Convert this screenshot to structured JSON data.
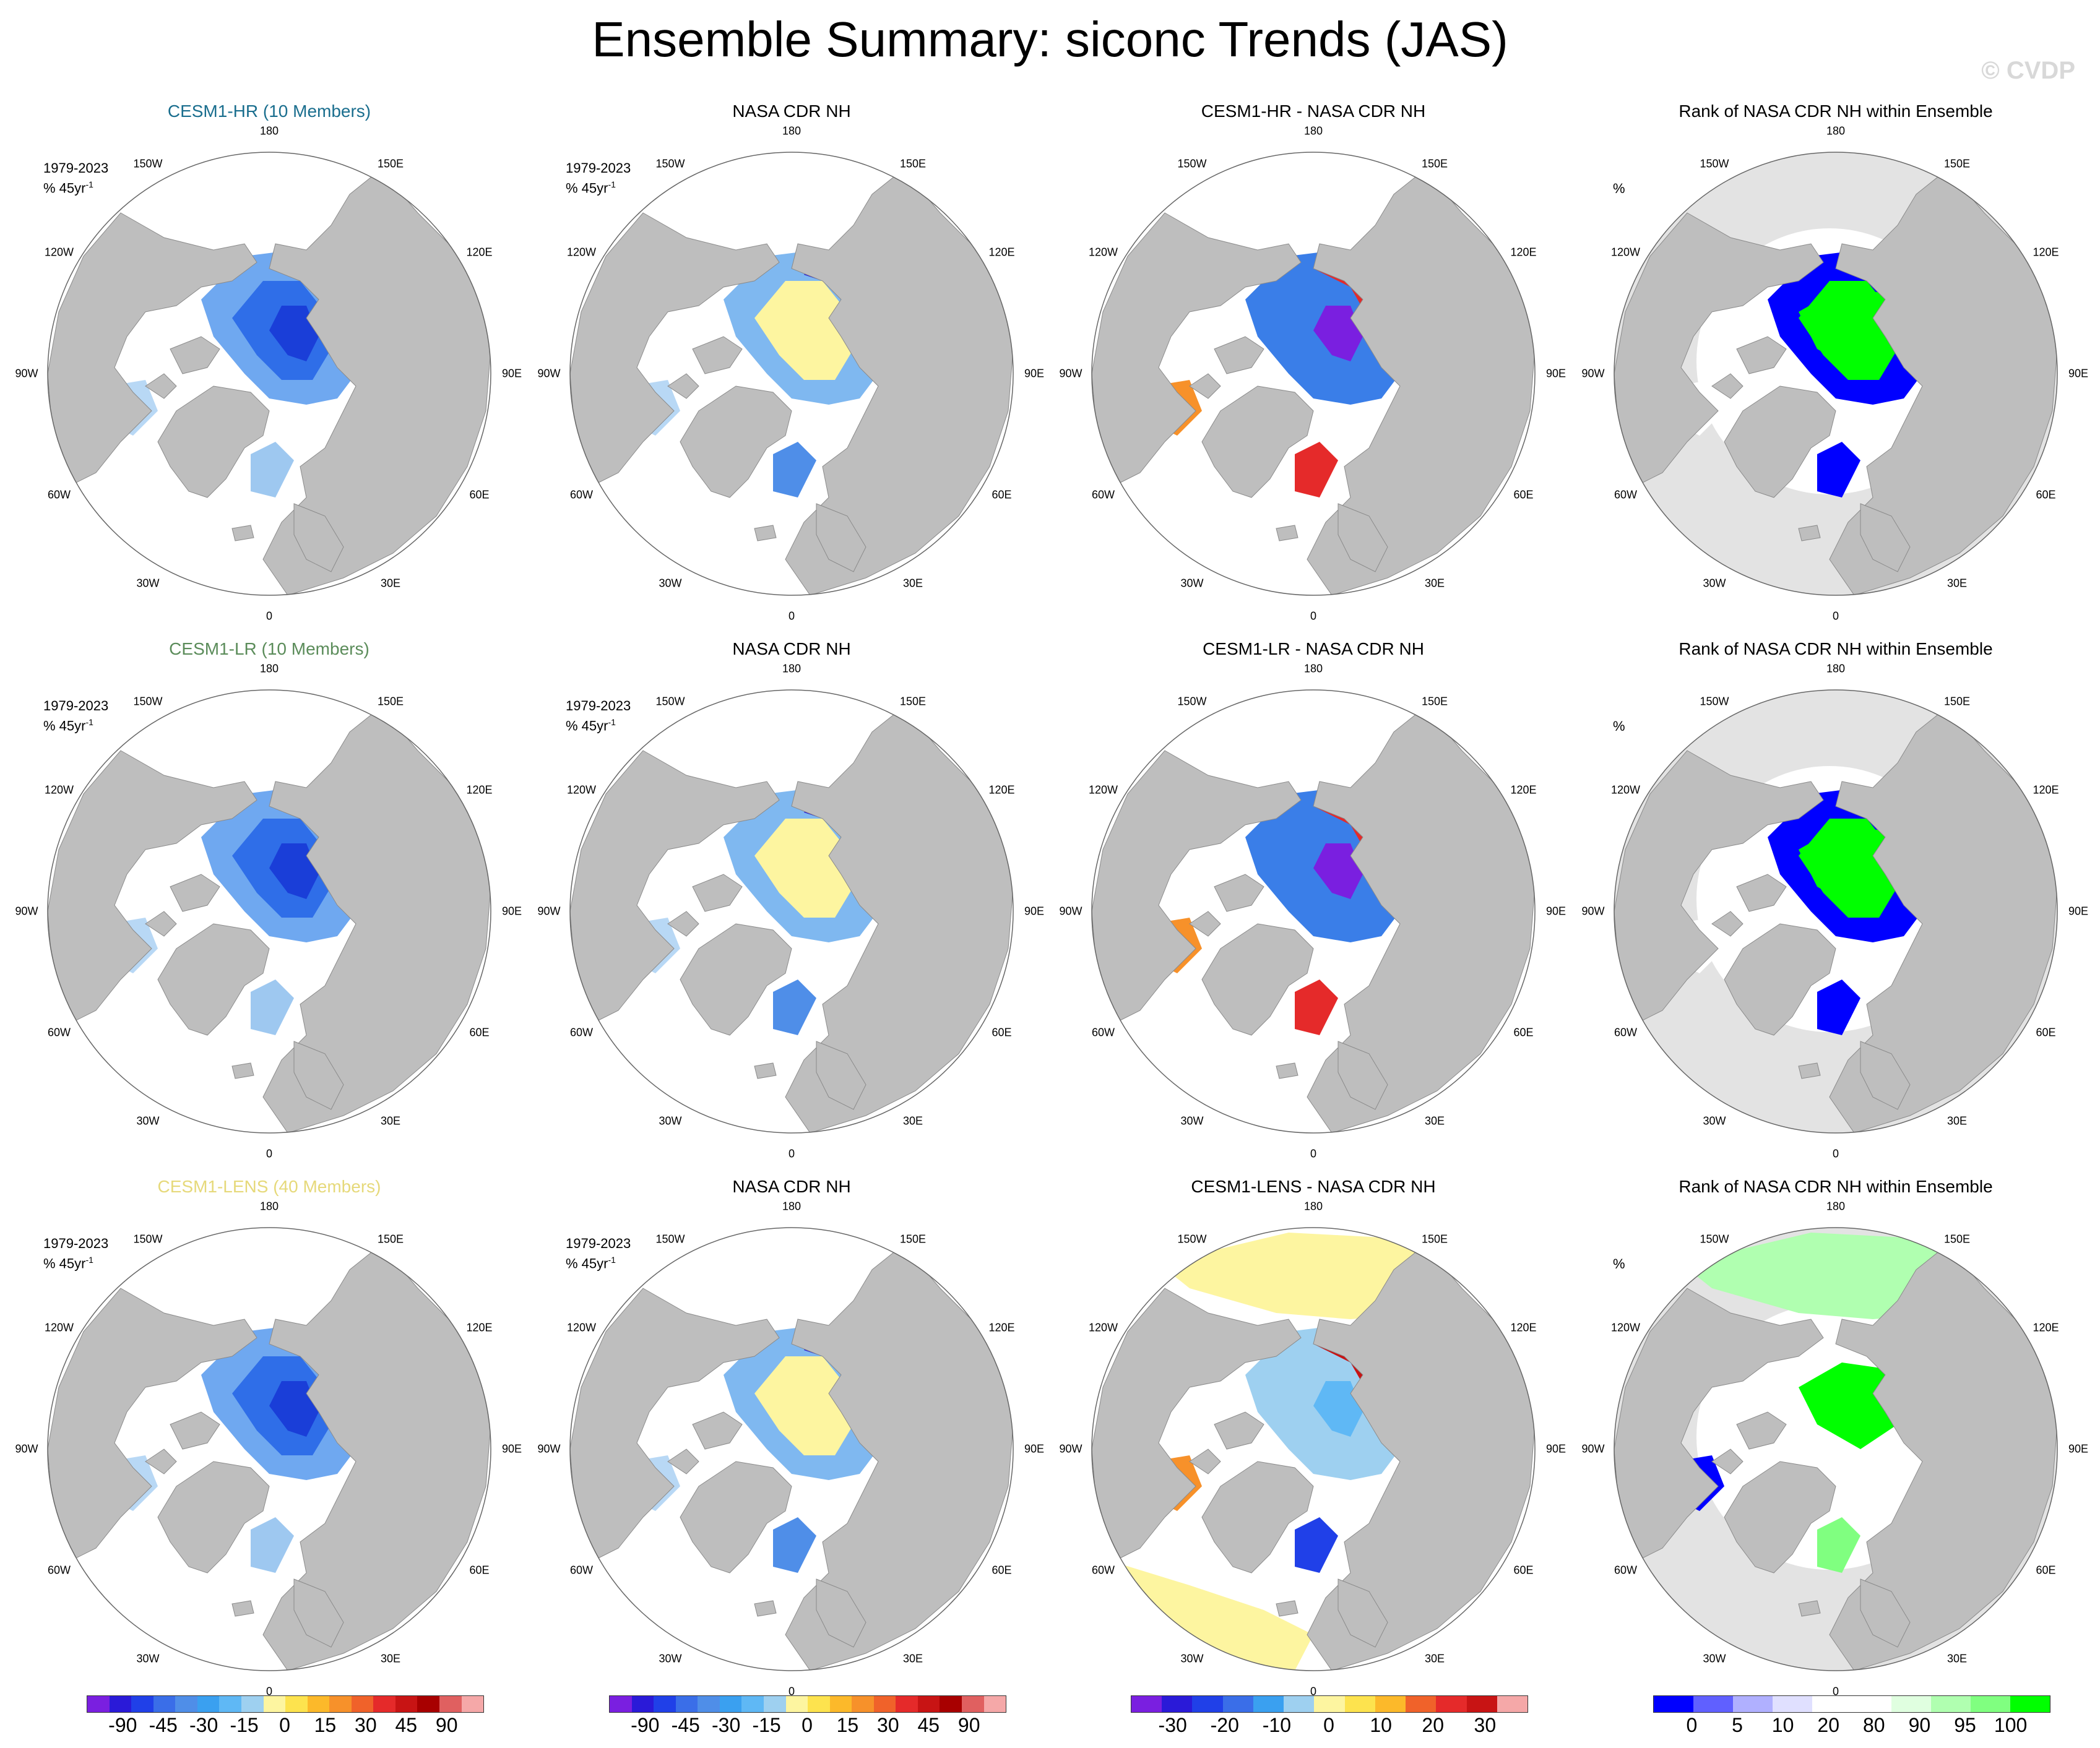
{
  "title": "Ensemble Summary: siconc Trends (JAS)",
  "watermark": "© CVDP",
  "period_label": "1979-2023",
  "units_label": "% 45yr",
  "units_sup": "-1",
  "rank_units": "%",
  "lon_labels": [
    "180",
    "150E",
    "120E",
    "90E",
    "60E",
    "30E",
    "0",
    "30W",
    "60W",
    "90W",
    "120W",
    "150W"
  ],
  "colors": {
    "land": "#bebebe",
    "ocean": "#ffffff",
    "rank_bg": "#e3e3e3",
    "hr_title": "#1a6e8e",
    "lr_title": "#5b8c5a",
    "lens_title": "#e6d97a"
  },
  "rows": [
    {
      "panels": [
        {
          "title": "CESM1-HR (10 Members)",
          "kind": "ens",
          "title_color": "#1a6e8e"
        },
        {
          "title": "NASA CDR NH",
          "kind": "obs"
        },
        {
          "title": "CESM1-HR - NASA CDR NH",
          "kind": "diff"
        },
        {
          "title": "Rank of NASA CDR NH within Ensemble",
          "kind": "rank"
        }
      ]
    },
    {
      "panels": [
        {
          "title": "CESM1-LR (10 Members)",
          "kind": "ens",
          "title_color": "#5b8c5a"
        },
        {
          "title": "NASA CDR NH",
          "kind": "obs"
        },
        {
          "title": "CESM1-LR - NASA CDR NH",
          "kind": "diff"
        },
        {
          "title": "Rank of NASA CDR NH within Ensemble",
          "kind": "rank"
        }
      ]
    },
    {
      "panels": [
        {
          "title": "CESM1-LENS (40 Members)",
          "kind": "ens",
          "title_color": "#e6d97a"
        },
        {
          "title": "NASA CDR NH",
          "kind": "obs"
        },
        {
          "title": "CESM1-LENS - NASA CDR NH",
          "kind": "diffwide"
        },
        {
          "title": "Rank of NASA CDR NH within Ensemble",
          "kind": "rankwide"
        }
      ]
    }
  ],
  "colorbars": [
    {
      "colors": [
        "#7a1fe0",
        "#2a1ad8",
        "#2040e8",
        "#3a6ee8",
        "#4f8ee8",
        "#3aa0f0",
        "#5fb8f5",
        "#9ed0f0",
        "#fdf5a0",
        "#fde34e",
        "#fcb92a",
        "#f7912a",
        "#f0622a",
        "#e52a2a",
        "#c81414",
        "#a80000",
        "#e06060",
        "#f5a8a8"
      ],
      "ticks": [
        "-90",
        "-45",
        "-30",
        "-15",
        "0",
        "15",
        "30",
        "45",
        "90"
      ]
    },
    {
      "colors": [
        "#7a1fe0",
        "#2a1ad8",
        "#2040e8",
        "#3a6ee8",
        "#4f8ee8",
        "#3aa0f0",
        "#5fb8f5",
        "#9ed0f0",
        "#fdf5a0",
        "#fde34e",
        "#fcb92a",
        "#f7912a",
        "#f0622a",
        "#e52a2a",
        "#c81414",
        "#a80000",
        "#e06060",
        "#f5a8a8"
      ],
      "ticks": [
        "-90",
        "-45",
        "-30",
        "-15",
        "0",
        "15",
        "30",
        "45",
        "90"
      ]
    },
    {
      "colors": [
        "#7a1fe0",
        "#2a1ad8",
        "#2040e8",
        "#3a6ee8",
        "#3aa0f0",
        "#9ed0f0",
        "#fdf5a0",
        "#fde34e",
        "#fcb92a",
        "#f0622a",
        "#e52a2a",
        "#c81414",
        "#f5a8a8"
      ],
      "ticks": [
        "-30",
        "-20",
        "-10",
        "0",
        "10",
        "20",
        "30"
      ]
    },
    {
      "colors": [
        "#0000ff",
        "#6060ff",
        "#b0b0ff",
        "#e0e0ff",
        "#ffffff",
        "#ffffff",
        "#e0ffe0",
        "#b0ffb0",
        "#80ff80",
        "#00ff00"
      ],
      "ticks": [
        "0",
        "5",
        "10",
        "20",
        "80",
        "90",
        "95",
        "100"
      ]
    }
  ]
}
